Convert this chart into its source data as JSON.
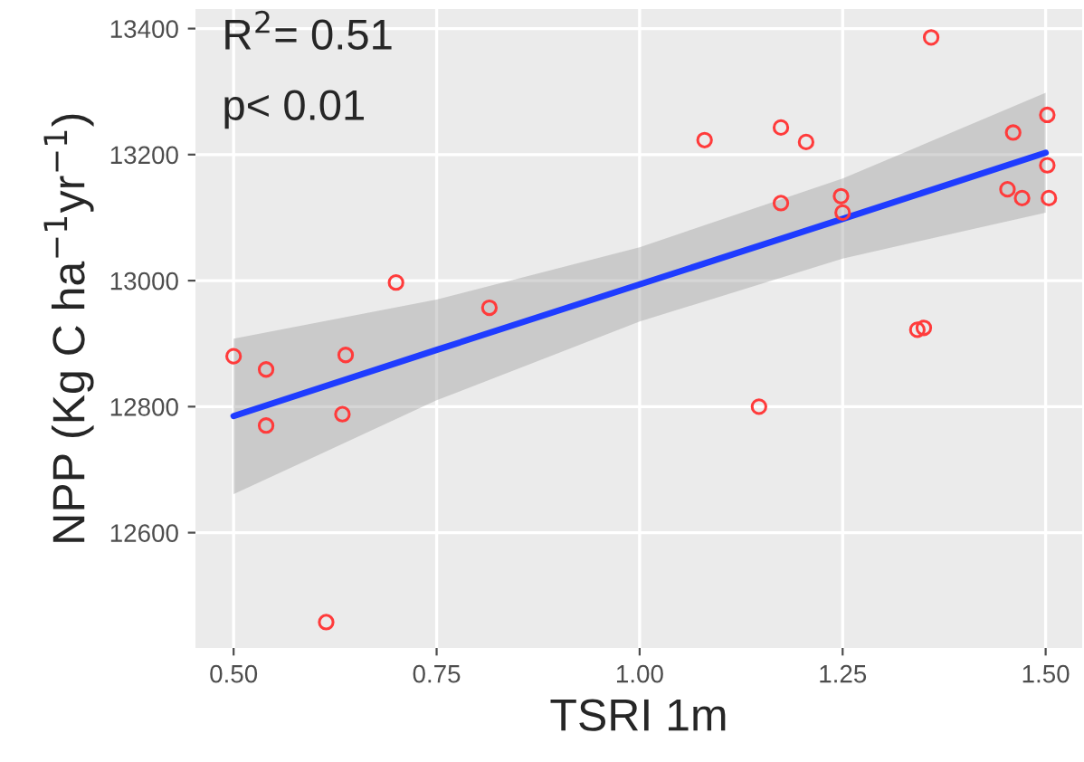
{
  "chart_data": {
    "type": "scatter",
    "xlabel": "TSRI 1m",
    "ylabel": "NPP (Kg C ha$^{−1}$yr$^{−1}$)",
    "xlim": [
      0.453,
      1.545
    ],
    "ylim": [
      12417,
      13431
    ],
    "xticks": [
      {
        "value": 0.5,
        "label": "0.50"
      },
      {
        "value": 0.75,
        "label": "0.75"
      },
      {
        "value": 1.0,
        "label": "1.00"
      },
      {
        "value": 1.25,
        "label": "1.25"
      },
      {
        "value": 1.5,
        "label": "1.50"
      }
    ],
    "yticks": [
      12600,
      12800,
      13000,
      13200,
      13400
    ],
    "grid": true,
    "annotations": [
      "R$^{2}$= 0.51",
      "p< 0.01"
    ],
    "series": [
      {
        "marker": "circle",
        "color": "#ff3b3b",
        "x": [
          0.5,
          0.54,
          0.54,
          0.638,
          0.634,
          0.7,
          0.815,
          0.614,
          1.08,
          1.174,
          1.205,
          1.174,
          1.248,
          1.25,
          1.359,
          1.342,
          1.35,
          1.147,
          1.46,
          1.502,
          1.502,
          1.453,
          1.471,
          1.504
        ],
        "values": [
          12880,
          12859,
          12770,
          12882,
          12788,
          12997,
          12957,
          12458,
          13223,
          13243,
          13220,
          13123,
          13134,
          13108,
          13386,
          12922,
          12925,
          12800,
          13235,
          13263,
          13183,
          13145,
          13131,
          13131
        ]
      },
      {
        "type": "line",
        "marker": "none",
        "color": "#1f3cff",
        "x": [
          0.5,
          0.75,
          1.0,
          1.25,
          1.5
        ],
        "values": [
          12785,
          12890,
          12994,
          13098,
          13203
        ],
        "lower": [
          12661,
          12810,
          12935,
          13035,
          13108
        ],
        "upper": [
          12908,
          12970,
          13053,
          13162,
          13298
        ]
      }
    ]
  }
}
